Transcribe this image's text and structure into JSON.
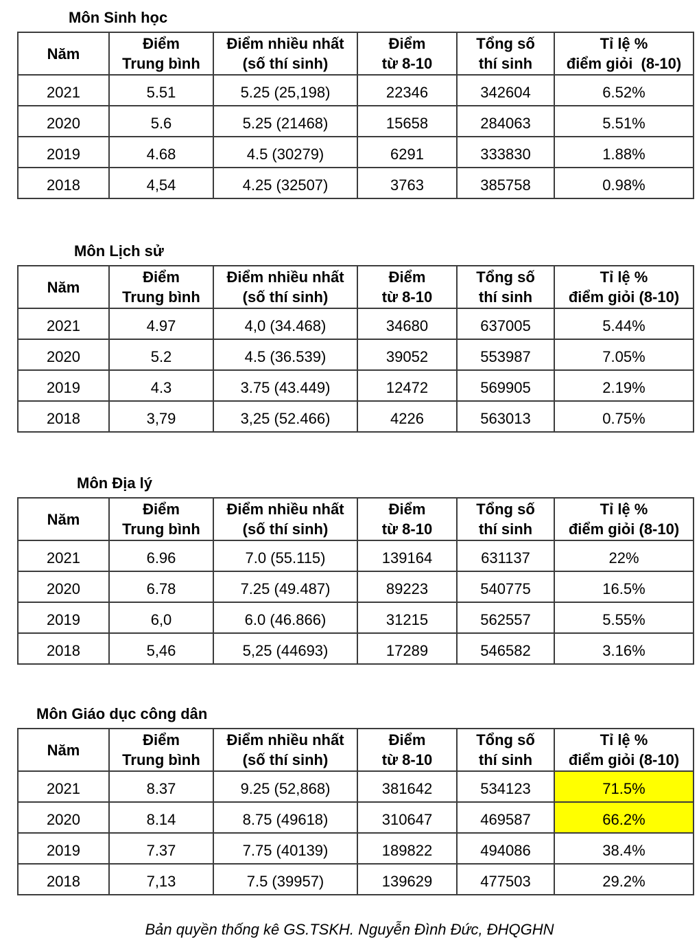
{
  "colors": {
    "background": "#ffffff",
    "text": "#000000",
    "border": "#3c3c3c",
    "highlight": "#ffff00"
  },
  "footer": "Bản quyền thống kê GS.TSKH. Nguyễn Đình Đức, ĐHQGHN",
  "tables": [
    {
      "title": "Môn Sinh học",
      "headers": [
        "Năm",
        "Điểm\nTrung bình",
        "Điểm nhiều nhất\n(số thí sinh)",
        "Điểm\ntừ 8-10",
        "Tổng số\nthí sinh",
        "Tỉ lệ %\nđiểm giỏi  (8-10)"
      ],
      "rows": [
        {
          "cells": [
            "2021",
            "5.51",
            "5.25 (25,198)",
            "22346",
            "342604",
            "6.52%"
          ],
          "highlight": false
        },
        {
          "cells": [
            "2020",
            "5.6",
            "5.25 (21468)",
            "15658",
            "284063",
            "5.51%"
          ],
          "highlight": false
        },
        {
          "cells": [
            "2019",
            "4.68",
            "4.5 (30279)",
            "6291",
            "333830",
            "1.88%"
          ],
          "highlight": false
        },
        {
          "cells": [
            "2018",
            "4,54",
            "4.25 (32507)",
            "3763",
            "385758",
            "0.98%"
          ],
          "highlight": false
        }
      ]
    },
    {
      "title": "Môn Lịch sử",
      "headers": [
        "Năm",
        "Điểm\nTrung bình",
        "Điểm nhiều nhất\n(số thí sinh)",
        "Điểm\ntừ 8-10",
        "Tổng số\nthí sinh",
        "Tỉ lệ %\nđiểm giỏi (8-10)"
      ],
      "rows": [
        {
          "cells": [
            "2021",
            "4.97",
            "4,0 (34.468)",
            "34680",
            "637005",
            "5.44%"
          ],
          "highlight": false
        },
        {
          "cells": [
            "2020",
            "5.2",
            "4.5 (36.539)",
            "39052",
            "553987",
            "7.05%"
          ],
          "highlight": false
        },
        {
          "cells": [
            "2019",
            "4.3",
            "3.75 (43.449)",
            "12472",
            "569905",
            "2.19%"
          ],
          "highlight": false
        },
        {
          "cells": [
            "2018",
            "3,79",
            "3,25 (52.466)",
            "4226",
            "563013",
            "0.75%"
          ],
          "highlight": false
        }
      ]
    },
    {
      "title": "Môn Địa lý",
      "headers": [
        "Năm",
        "Điểm\nTrung bình",
        "Điểm nhiều nhất\n(số thí sinh)",
        "Điểm\ntừ 8-10",
        "Tổng số\nthí sinh",
        "Tỉ lệ %\nđiểm giỏi (8-10)"
      ],
      "rows": [
        {
          "cells": [
            "2021",
            "6.96",
            "7.0 (55.115)",
            "139164",
            "631137",
            "22%"
          ],
          "highlight": false
        },
        {
          "cells": [
            "2020",
            "6.78",
            "7.25 (49.487)",
            "89223",
            "540775",
            "16.5%"
          ],
          "highlight": false
        },
        {
          "cells": [
            "2019",
            "6,0",
            "6.0 (46.866)",
            "31215",
            "562557",
            "5.55%"
          ],
          "highlight": false
        },
        {
          "cells": [
            "2018",
            "5,46",
            "5,25 (44693)",
            "17289",
            "546582",
            "3.16%"
          ],
          "highlight": false
        }
      ]
    },
    {
      "title": "Môn Giáo dục công dân",
      "headers": [
        "Năm",
        "Điểm\nTrung bình",
        "Điểm nhiều nhất\n(số thí sinh)",
        "Điểm\ntừ 8-10",
        "Tổng số\nthí sinh",
        "Tỉ lệ %\nđiểm giỏi (8-10)"
      ],
      "rows": [
        {
          "cells": [
            "2021",
            "8.37",
            "9.25 (52,868)",
            "381642",
            "534123",
            "71.5%"
          ],
          "highlight": true
        },
        {
          "cells": [
            "2020",
            "8.14",
            "8.75 (49618)",
            "310647",
            "469587",
            "66.2%"
          ],
          "highlight": true
        },
        {
          "cells": [
            "2019",
            "7.37",
            "7.75 (40139)",
            "189822",
            "494086",
            "38.4%"
          ],
          "highlight": false
        },
        {
          "cells": [
            "2018",
            "7,13",
            "7.5 (39957)",
            "139629",
            "477503",
            "29.2%"
          ],
          "highlight": false
        }
      ]
    }
  ]
}
